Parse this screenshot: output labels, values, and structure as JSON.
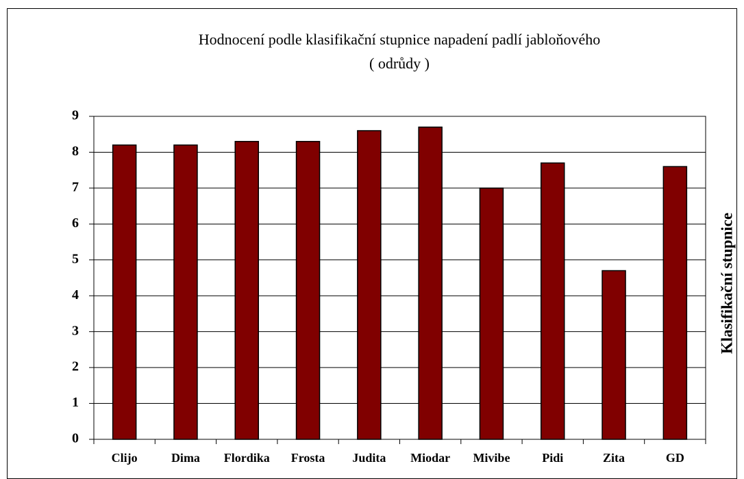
{
  "chart_data": {
    "type": "bar",
    "title": "Hodnocení podle klasifikační stupnice napadení padlí jabloňového",
    "subtitle": "( odrůdy )",
    "y_label": "Klasifikační stupnice",
    "categories": [
      "Clijo",
      "Dima",
      "Flordika",
      "Frosta",
      "Judita",
      "Miodar",
      "Mivibe",
      "Pidi",
      "Zita",
      "GD"
    ],
    "values": [
      8.2,
      8.2,
      8.3,
      8.3,
      8.6,
      8.7,
      7.0,
      7.7,
      4.7,
      7.6
    ],
    "color": "#800000",
    "ylim": [
      0,
      9
    ],
    "yticks": [
      0,
      1,
      2,
      3,
      4,
      5,
      6,
      7,
      8,
      9
    ],
    "grid": true
  }
}
